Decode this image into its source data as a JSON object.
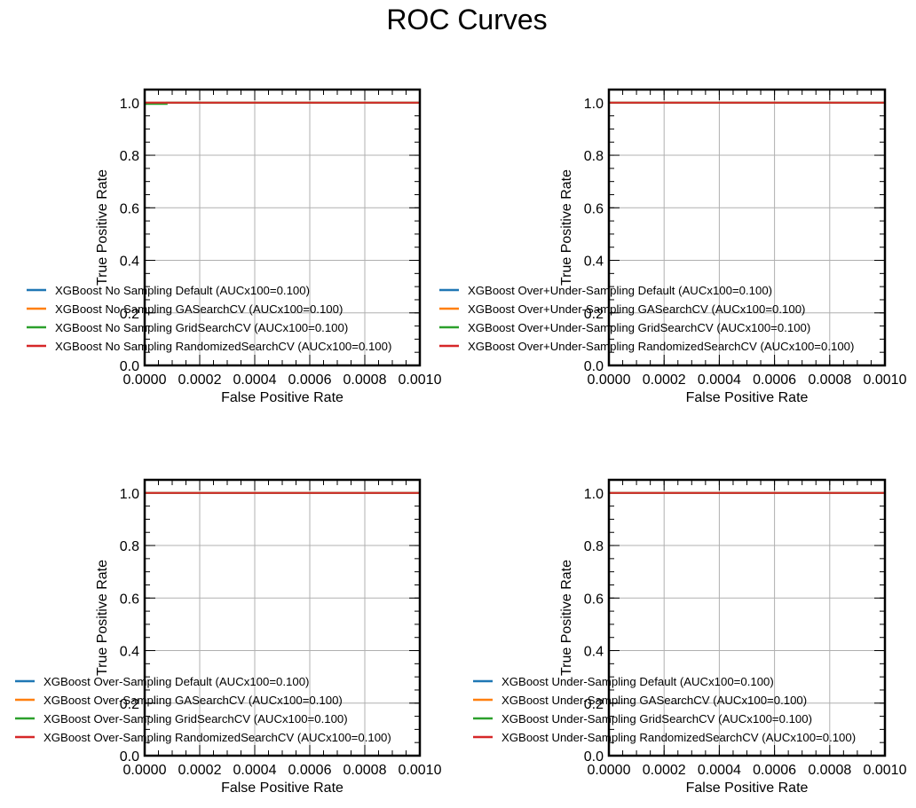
{
  "figure": {
    "title": "ROC Curves"
  },
  "colors": {
    "blue": "#1f77b4",
    "orange": "#ff7f0e",
    "green": "#2ca02c",
    "red": "#d62728",
    "grid": "#b0b0b0",
    "axes": "#000000"
  },
  "chart_data": [
    {
      "type": "line",
      "title": "",
      "xlabel": "False Positive Rate",
      "ylabel": "True Positive Rate",
      "xlim": [
        0,
        0.001
      ],
      "ylim": [
        0,
        1.05
      ],
      "xticks": [
        "0.0000",
        "0.0002",
        "0.0004",
        "0.0006",
        "0.0008",
        "0.0010"
      ],
      "yticks": [
        "0.0",
        "0.2",
        "0.4",
        "0.6",
        "0.8",
        "1.0"
      ],
      "grid": true,
      "legend_position": "lower-left",
      "series": [
        {
          "name": "XGBoost No Sampling Default (AUCx100=0.100)",
          "color": "#1f77b4",
          "x": [
            0,
            0,
            0.001
          ],
          "y": [
            0,
            1.0,
            1.0
          ]
        },
        {
          "name": "XGBoost No Sampling GASearchCV (AUCx100=0.100)",
          "color": "#ff7f0e",
          "x": [
            0,
            0,
            0.001
          ],
          "y": [
            0,
            1.0,
            1.0
          ]
        },
        {
          "name": "XGBoost No Sampling GridSearchCV (AUCx100=0.100)",
          "color": "#2ca02c",
          "x": [
            0,
            0,
            8e-05,
            8e-05,
            0.001
          ],
          "y": [
            0,
            0.995,
            0.995,
            1.0,
            1.0
          ]
        },
        {
          "name": "XGBoost No Sampling RandomizedSearchCV (AUCx100=0.100)",
          "color": "#d62728",
          "x": [
            0,
            0,
            0.001
          ],
          "y": [
            0,
            1.0,
            1.0
          ]
        }
      ]
    },
    {
      "type": "line",
      "title": "",
      "xlabel": "False Positive Rate",
      "ylabel": "True Positive Rate",
      "xlim": [
        0,
        0.001
      ],
      "ylim": [
        0,
        1.05
      ],
      "xticks": [
        "0.0000",
        "0.0002",
        "0.0004",
        "0.0006",
        "0.0008",
        "0.0010"
      ],
      "yticks": [
        "0.0",
        "0.2",
        "0.4",
        "0.6",
        "0.8",
        "1.0"
      ],
      "grid": true,
      "legend_position": "lower-left",
      "series": [
        {
          "name": "XGBoost Over+Under-Sampling Default (AUCx100=0.100)",
          "color": "#1f77b4",
          "x": [
            0,
            0,
            0.001
          ],
          "y": [
            0,
            1.0,
            1.0
          ]
        },
        {
          "name": "XGBoost Over+Under-Sampling GASearchCV (AUCx100=0.100)",
          "color": "#ff7f0e",
          "x": [
            0,
            0,
            0.001
          ],
          "y": [
            0,
            1.0,
            1.0
          ]
        },
        {
          "name": "XGBoost Over+Under-Sampling GridSearchCV (AUCx100=0.100)",
          "color": "#2ca02c",
          "x": [
            0,
            0,
            0.001
          ],
          "y": [
            0,
            1.0,
            1.0
          ]
        },
        {
          "name": "XGBoost Over+Under-Sampling RandomizedSearchCV (AUCx100=0.100)",
          "color": "#d62728",
          "x": [
            0,
            0,
            0.001
          ],
          "y": [
            0,
            1.0,
            1.0
          ]
        }
      ]
    },
    {
      "type": "line",
      "title": "",
      "xlabel": "False Positive Rate",
      "ylabel": "True Positive Rate",
      "xlim": [
        0,
        0.001
      ],
      "ylim": [
        0,
        1.05
      ],
      "xticks": [
        "0.0000",
        "0.0002",
        "0.0004",
        "0.0006",
        "0.0008",
        "0.0010"
      ],
      "yticks": [
        "0.0",
        "0.2",
        "0.4",
        "0.6",
        "0.8",
        "1.0"
      ],
      "grid": true,
      "legend_position": "lower-left",
      "series": [
        {
          "name": "XGBoost Over-Sampling Default (AUCx100=0.100)",
          "color": "#1f77b4",
          "x": [
            0,
            0,
            0.001
          ],
          "y": [
            0,
            1.0,
            1.0
          ]
        },
        {
          "name": "XGBoost Over-Sampling GASearchCV (AUCx100=0.100)",
          "color": "#ff7f0e",
          "x": [
            0,
            0,
            0.001
          ],
          "y": [
            0,
            1.0,
            1.0
          ]
        },
        {
          "name": "XGBoost Over-Sampling GridSearchCV (AUCx100=0.100)",
          "color": "#2ca02c",
          "x": [
            0,
            0,
            0.001
          ],
          "y": [
            0,
            1.0,
            1.0
          ]
        },
        {
          "name": "XGBoost Over-Sampling RandomizedSearchCV (AUCx100=0.100)",
          "color": "#d62728",
          "x": [
            0,
            0,
            0.001
          ],
          "y": [
            0,
            1.0,
            1.0
          ]
        }
      ]
    },
    {
      "type": "line",
      "title": "",
      "xlabel": "False Positive Rate",
      "ylabel": "True Positive Rate",
      "xlim": [
        0,
        0.001
      ],
      "ylim": [
        0,
        1.05
      ],
      "xticks": [
        "0.0000",
        "0.0002",
        "0.0004",
        "0.0006",
        "0.0008",
        "0.0010"
      ],
      "yticks": [
        "0.0",
        "0.2",
        "0.4",
        "0.6",
        "0.8",
        "1.0"
      ],
      "grid": true,
      "legend_position": "lower-left",
      "series": [
        {
          "name": "XGBoost Under-Sampling Default (AUCx100=0.100)",
          "color": "#1f77b4",
          "x": [
            0,
            0,
            0.001
          ],
          "y": [
            0,
            1.0,
            1.0
          ]
        },
        {
          "name": "XGBoost Under-Sampling GASearchCV (AUCx100=0.100)",
          "color": "#ff7f0e",
          "x": [
            0,
            0,
            0.001
          ],
          "y": [
            0,
            1.0,
            1.0
          ]
        },
        {
          "name": "XGBoost Under-Sampling GridSearchCV (AUCx100=0.100)",
          "color": "#2ca02c",
          "x": [
            0,
            0,
            0.001
          ],
          "y": [
            0,
            1.0,
            1.0
          ]
        },
        {
          "name": "XGBoost Under-Sampling RandomizedSearchCV (AUCx100=0.100)",
          "color": "#d62728",
          "x": [
            0,
            0,
            0.001
          ],
          "y": [
            0,
            1.0,
            1.0
          ]
        }
      ]
    }
  ]
}
